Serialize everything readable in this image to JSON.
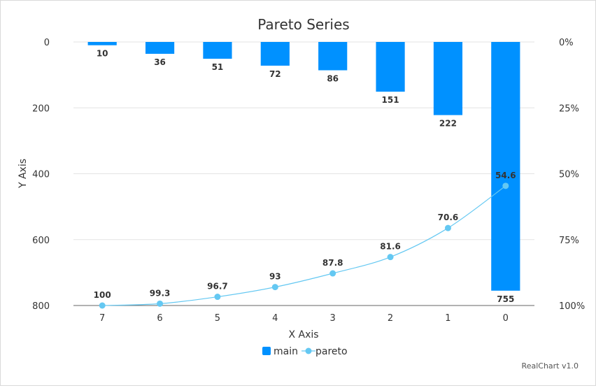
{
  "chart_data": {
    "type": "bar",
    "title": "Pareto Series",
    "xlabel": "X Axis",
    "ylabel": "Y Axis",
    "categories": [
      "7",
      "6",
      "5",
      "4",
      "3",
      "2",
      "1",
      "0"
    ],
    "ylim": [
      0,
      800
    ],
    "y_reversed": true,
    "y_ticks": [
      "0",
      "200",
      "400",
      "600",
      "800"
    ],
    "y2_ticks": [
      "0%",
      "25%",
      "50%",
      "75%",
      "100%"
    ],
    "y2_range": [
      0,
      100
    ],
    "grid": true,
    "legend_position": "bottom",
    "series": [
      {
        "name": "main",
        "type": "bar",
        "color": "#0091ff",
        "values": [
          10,
          36,
          51,
          72,
          86,
          151,
          222,
          755
        ]
      },
      {
        "name": "pareto",
        "type": "line",
        "axis": "secondary",
        "color": "#64c8f2",
        "values": [
          100,
          99.3,
          96.7,
          93,
          87.8,
          81.6,
          70.6,
          54.6
        ]
      }
    ]
  },
  "credit": "RealChart v1.0"
}
